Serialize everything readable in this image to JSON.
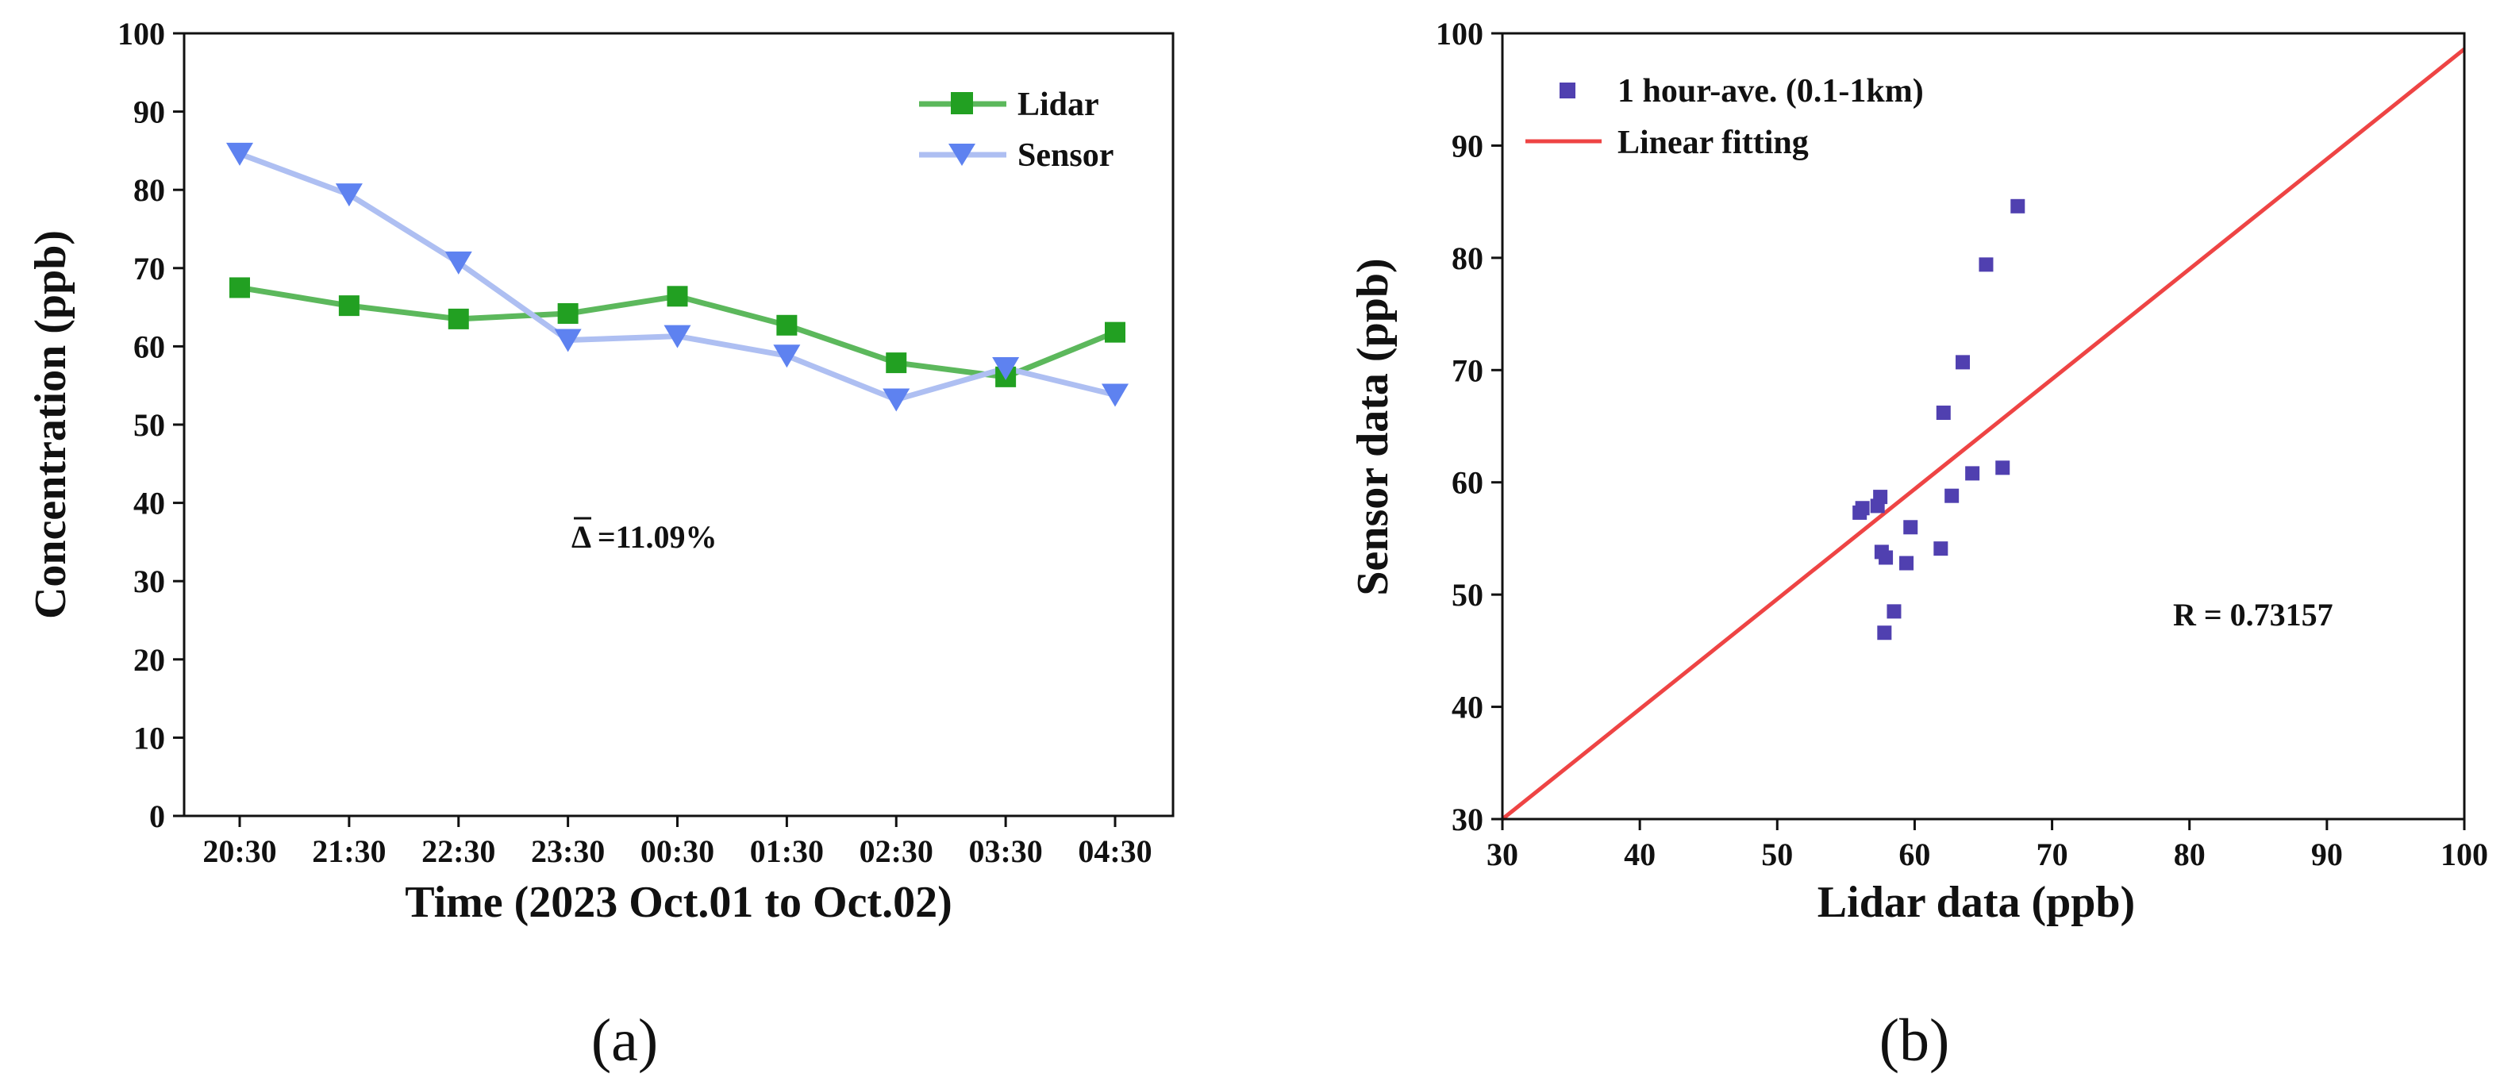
{
  "colors": {
    "lidar": "#22a022",
    "lidar_line": "#5cb85c",
    "sensor": "#5e82f0",
    "sensor_line": "#aebff2",
    "scatter": "#5040b0",
    "fit": "#ee4444",
    "axis": "#111111"
  },
  "panels": {
    "a": "(a)",
    "b": "(b)"
  },
  "chart_data": [
    {
      "type": "line",
      "panel": "(a)",
      "title": "",
      "xlabel": "Time (2023 Oct.01 to Oct.02)",
      "ylabel": "Concentration (ppb)",
      "categories": [
        "20:30",
        "21:30",
        "22:30",
        "23:30",
        "00:30",
        "01:30",
        "02:30",
        "03:30",
        "04:30"
      ],
      "ylim": [
        0,
        100
      ],
      "yticks": [
        "0",
        "10",
        "20",
        "30",
        "40",
        "50",
        "60",
        "70",
        "80",
        "90",
        "100"
      ],
      "series": [
        {
          "name": "Lidar",
          "marker": "square",
          "values": [
            67.5,
            65.2,
            63.5,
            64.2,
            66.4,
            62.7,
            57.9,
            56.1,
            61.8
          ]
        },
        {
          "name": "Sensor",
          "marker": "triangle-down",
          "values": [
            84.6,
            79.4,
            70.7,
            60.8,
            61.3,
            58.8,
            53.2,
            57.2,
            53.8
          ]
        }
      ],
      "annotation": "Δ =11.09%",
      "legend_position": "top-right",
      "grid": false
    },
    {
      "type": "scatter",
      "panel": "(b)",
      "title": "",
      "xlabel": "Lidar data (ppb)",
      "ylabel": "Sensor data (ppb)",
      "xlim": [
        30,
        100
      ],
      "ylim": [
        30,
        100
      ],
      "xticks": [
        "30",
        "40",
        "50",
        "60",
        "70",
        "80",
        "90",
        "100"
      ],
      "yticks": [
        "30",
        "40",
        "50",
        "60",
        "70",
        "80",
        "90",
        "100"
      ],
      "series": [
        {
          "name": "1 hour-ave. (0.1-1km)",
          "points": [
            [
              67.5,
              84.6
            ],
            [
              65.2,
              79.4
            ],
            [
              63.5,
              70.7
            ],
            [
              62.1,
              66.2
            ],
            [
              66.4,
              61.3
            ],
            [
              64.2,
              60.8
            ],
            [
              62.7,
              58.8
            ],
            [
              57.5,
              58.7
            ],
            [
              57.3,
              57.9
            ],
            [
              56.2,
              57.7
            ],
            [
              56.0,
              57.3
            ],
            [
              59.7,
              56.0
            ],
            [
              61.9,
              54.1
            ],
            [
              57.6,
              53.8
            ],
            [
              57.9,
              53.3
            ],
            [
              59.4,
              52.8
            ],
            [
              58.5,
              48.5
            ],
            [
              57.8,
              46.6
            ]
          ]
        }
      ],
      "fit": {
        "name": "Linear fitting",
        "slope": 0.98,
        "intercept": 0.6
      },
      "annotation": "R = 0.73157",
      "legend_position": "top-left",
      "grid": false
    }
  ]
}
